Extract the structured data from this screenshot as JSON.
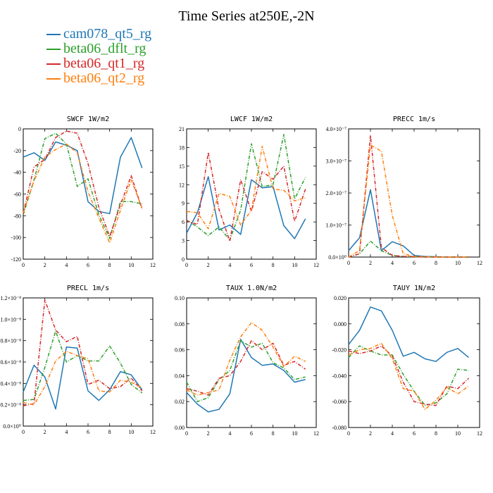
{
  "title": "Time Series at250E,-2N",
  "legend": [
    {
      "name": "cam078_qt5_rg",
      "color": "#1f77b4"
    },
    {
      "name": "beta06_dflt_rg",
      "color": "#2ca02c"
    },
    {
      "name": "beta06_qt1_rg",
      "color": "#d62728"
    },
    {
      "name": "beta06_qt2_rg",
      "color": "#ff7f0e"
    }
  ],
  "chart_data": [
    {
      "type": "line",
      "title": "SWCF   1W/m2",
      "x": [
        0,
        1,
        2,
        3,
        4,
        5,
        6,
        7,
        8,
        9,
        10,
        11
      ],
      "xlim": [
        0,
        12
      ],
      "xticks": [
        "0",
        "2",
        "4",
        "6",
        "8",
        "10",
        "12"
      ],
      "ylim": [
        -120,
        0
      ],
      "yticks": [
        "-120",
        "-100",
        "-80",
        "-60",
        "-40",
        "-20",
        "0"
      ],
      "series": [
        {
          "name": "cam078_qt5_rg",
          "color": "#1f77b4",
          "values": [
            -26,
            -22,
            -29,
            -12,
            -15,
            -20,
            -67,
            -76,
            -78,
            -26,
            -8,
            -36
          ]
        },
        {
          "name": "beta06_dflt_rg",
          "color": "#2ca02c",
          "values": [
            -79,
            -47,
            -9,
            -4,
            -14,
            -53,
            -46,
            -79,
            -101,
            -67,
            -67,
            -69
          ]
        },
        {
          "name": "beta06_qt1_rg",
          "color": "#d62728",
          "values": [
            -78,
            -35,
            -28,
            -8,
            -2,
            -4,
            -32,
            -72,
            -99,
            -70,
            -43,
            -74
          ]
        },
        {
          "name": "beta06_qt2_rg",
          "color": "#ff7f0e",
          "values": [
            -77,
            -48,
            -26,
            -19,
            -14,
            -22,
            -58,
            -82,
            -105,
            -75,
            -47,
            -73
          ]
        }
      ]
    },
    {
      "type": "line",
      "title": "LWCF   1W/m2",
      "x": [
        0,
        1,
        2,
        3,
        4,
        5,
        6,
        7,
        8,
        9,
        10,
        11
      ],
      "xlim": [
        0,
        12
      ],
      "xticks": [
        "0",
        "2",
        "4",
        "6",
        "8",
        "10",
        "12"
      ],
      "ylim": [
        0,
        21
      ],
      "yticks": [
        "0",
        "3",
        "6",
        "9",
        "12",
        "15",
        "18",
        "21"
      ],
      "series": [
        {
          "name": "cam078_qt5_rg",
          "color": "#1f77b4",
          "values": [
            4.2,
            7.5,
            13.3,
            4.7,
            5.5,
            4.0,
            12.8,
            11.5,
            11.7,
            5.4,
            3.3,
            6.5
          ]
        },
        {
          "name": "beta06_dflt_rg",
          "color": "#2ca02c",
          "values": [
            6.3,
            5.2,
            3.8,
            5.2,
            3.1,
            7.9,
            18.6,
            11.7,
            12.0,
            20.1,
            9.7,
            13.2
          ]
        },
        {
          "name": "beta06_qt1_rg",
          "color": "#d62728",
          "values": [
            6.2,
            5.6,
            17.2,
            8.0,
            2.9,
            12.8,
            7.7,
            14.1,
            12.9,
            15.0,
            6.1,
            11.3
          ]
        },
        {
          "name": "beta06_qt2_rg",
          "color": "#ff7f0e",
          "values": [
            7.7,
            7.5,
            4.9,
            10.6,
            10.1,
            5.5,
            7.9,
            18.2,
            11.3,
            11.1,
            9.4,
            9.9
          ]
        }
      ]
    },
    {
      "type": "line",
      "title": "PRECC   1m/s",
      "x": [
        0,
        1,
        2,
        3,
        4,
        5,
        6,
        7,
        8,
        9,
        10,
        11
      ],
      "xlim": [
        0,
        12
      ],
      "xticks": [
        "0",
        "2",
        "4",
        "6",
        "8",
        "10",
        "12"
      ],
      "ylim": [
        0,
        4e-07
      ],
      "ytick_values": [
        0,
        1e-07,
        2e-07,
        3e-07,
        4e-07
      ],
      "yticks": [
        "0.0×10⁰",
        "1.0×10⁻⁷",
        "2.0×10⁻⁷",
        "3.0×10⁻⁷",
        "4.0×10⁻⁷"
      ],
      "series": [
        {
          "name": "cam078_qt5_rg",
          "color": "#1f77b4",
          "values": [
            2e-08,
            6e-08,
            2.1e-07,
            2e-08,
            4.8e-08,
            3.5e-08,
            5e-09,
            2e-09,
            1e-09,
            0,
            0,
            0
          ]
        },
        {
          "name": "beta06_dflt_rg",
          "color": "#2ca02c",
          "values": [
            0,
            1e-08,
            5e-08,
            2e-08,
            5e-09,
            2e-09,
            1e-09,
            0,
            0,
            0,
            0,
            0
          ]
        },
        {
          "name": "beta06_qt1_rg",
          "color": "#d62728",
          "values": [
            0,
            1e-08,
            3.8e-07,
            3e-08,
            5e-09,
            2e-09,
            1e-09,
            0,
            0,
            0,
            0,
            0
          ]
        },
        {
          "name": "beta06_qt2_rg",
          "color": "#ff7f0e",
          "values": [
            0,
            2e-08,
            3.5e-07,
            3.3e-07,
            1.3e-07,
            1e-08,
            2e-09,
            1e-09,
            0,
            0,
            0,
            0
          ]
        }
      ]
    },
    {
      "type": "line",
      "title": "PRECL   1m/s",
      "x": [
        0,
        1,
        2,
        3,
        4,
        5,
        6,
        7,
        8,
        9,
        10,
        11
      ],
      "xlim": [
        0,
        12
      ],
      "xticks": [
        "0",
        "2",
        "4",
        "6",
        "8",
        "10",
        "12"
      ],
      "ylim": [
        0,
        1.2e-08
      ],
      "ytick_values": [
        0,
        2e-09,
        4e-09,
        6e-09,
        8e-09,
        1e-08,
        1.2e-08
      ],
      "yticks": [
        "0.0×10⁰",
        "0.2×10⁻⁸",
        "0.4×10⁻⁸",
        "0.6×10⁻⁸",
        "0.8×10⁻⁸",
        "1.0×10⁻⁸",
        "1.2×10⁻⁸"
      ],
      "series": [
        {
          "name": "cam078_qt5_rg",
          "color": "#1f77b4",
          "values": [
            3.2e-09,
            5.7e-09,
            4.6e-09,
            1.6e-09,
            7.4e-09,
            7.3e-09,
            3.3e-09,
            2.4e-09,
            3.4e-09,
            5.1e-09,
            4.8e-09,
            3.4e-09
          ]
        },
        {
          "name": "beta06_dflt_rg",
          "color": "#2ca02c",
          "values": [
            2.4e-09,
            2.5e-09,
            5.5e-09,
            8.9e-09,
            6e-09,
            6.6e-09,
            6.1e-09,
            6.1e-09,
            7.5e-09,
            5.9e-09,
            3.9e-09,
            3.1e-09
          ]
        },
        {
          "name": "beta06_qt1_rg",
          "color": "#d62728",
          "values": [
            1.9e-09,
            2.1e-09,
            1.18e-08,
            9e-09,
            7.9e-09,
            8.4e-09,
            3.9e-09,
            4.3e-09,
            3.5e-09,
            3.7e-09,
            4.5e-09,
            3.3e-09
          ]
        },
        {
          "name": "beta06_qt2_rg",
          "color": "#ff7f0e",
          "values": [
            2.2e-09,
            2e-09,
            3.7e-09,
            6.1e-09,
            7e-09,
            6.6e-09,
            6.3e-09,
            3.3e-09,
            3.2e-09,
            4.3e-09,
            4.1e-09,
            3.6e-09
          ]
        }
      ]
    },
    {
      "type": "line",
      "title": "TAUX   1.0N/m2",
      "x": [
        0,
        1,
        2,
        3,
        4,
        5,
        6,
        7,
        8,
        9,
        10,
        11
      ],
      "xlim": [
        0,
        12
      ],
      "xticks": [
        "0",
        "2",
        "4",
        "6",
        "8",
        "10",
        "12"
      ],
      "ylim": [
        0,
        0.1
      ],
      "yticks": [
        "0.00",
        "0.02",
        "0.04",
        "0.06",
        "0.08",
        "0.10"
      ],
      "series": [
        {
          "name": "cam078_qt5_rg",
          "color": "#1f77b4",
          "values": [
            0.027,
            0.018,
            0.012,
            0.014,
            0.026,
            0.068,
            0.054,
            0.048,
            0.049,
            0.044,
            0.035,
            0.037
          ]
        },
        {
          "name": "beta06_dflt_rg",
          "color": "#2ca02c",
          "values": [
            0.035,
            0.02,
            0.023,
            0.037,
            0.044,
            0.067,
            0.062,
            0.065,
            0.05,
            0.046,
            0.037,
            0.039
          ]
        },
        {
          "name": "beta06_qt1_rg",
          "color": "#d62728",
          "values": [
            0.03,
            0.028,
            0.025,
            0.038,
            0.04,
            0.051,
            0.067,
            0.06,
            0.065,
            0.048,
            0.051,
            0.045
          ]
        },
        {
          "name": "beta06_qt2_rg",
          "color": "#ff7f0e",
          "values": [
            0.029,
            0.025,
            0.027,
            0.029,
            0.052,
            0.07,
            0.081,
            0.075,
            0.062,
            0.047,
            0.055,
            0.051
          ]
        }
      ]
    },
    {
      "type": "line",
      "title": "TAUY   1N/m2",
      "x": [
        0,
        1,
        2,
        3,
        4,
        5,
        6,
        7,
        8,
        9,
        10,
        11
      ],
      "xlim": [
        0,
        12
      ],
      "xticks": [
        "0",
        "2",
        "4",
        "6",
        "8",
        "10",
        "12"
      ],
      "ylim": [
        -0.08,
        0.02
      ],
      "yticks": [
        "-0.080",
        "-0.060",
        "-0.040",
        "-0.020",
        "0.000",
        "0.020"
      ],
      "series": [
        {
          "name": "cam078_qt5_rg",
          "color": "#1f77b4",
          "values": [
            -0.016,
            -0.005,
            0.013,
            0.01,
            -0.005,
            -0.025,
            -0.022,
            -0.027,
            -0.029,
            -0.022,
            -0.019,
            -0.026
          ]
        },
        {
          "name": "beta06_dflt_rg",
          "color": "#2ca02c",
          "values": [
            -0.026,
            -0.017,
            -0.021,
            -0.024,
            -0.024,
            -0.039,
            -0.052,
            -0.063,
            -0.061,
            -0.054,
            -0.035,
            -0.036
          ]
        },
        {
          "name": "beta06_qt1_rg",
          "color": "#d62728",
          "values": [
            -0.021,
            -0.023,
            -0.021,
            -0.017,
            -0.025,
            -0.045,
            -0.06,
            -0.062,
            -0.063,
            -0.048,
            -0.05,
            -0.042
          ]
        },
        {
          "name": "beta06_qt2_rg",
          "color": "#ff7f0e",
          "values": [
            -0.024,
            -0.02,
            -0.019,
            -0.015,
            -0.027,
            -0.05,
            -0.052,
            -0.066,
            -0.059,
            -0.049,
            -0.054,
            -0.048
          ]
        }
      ]
    }
  ]
}
